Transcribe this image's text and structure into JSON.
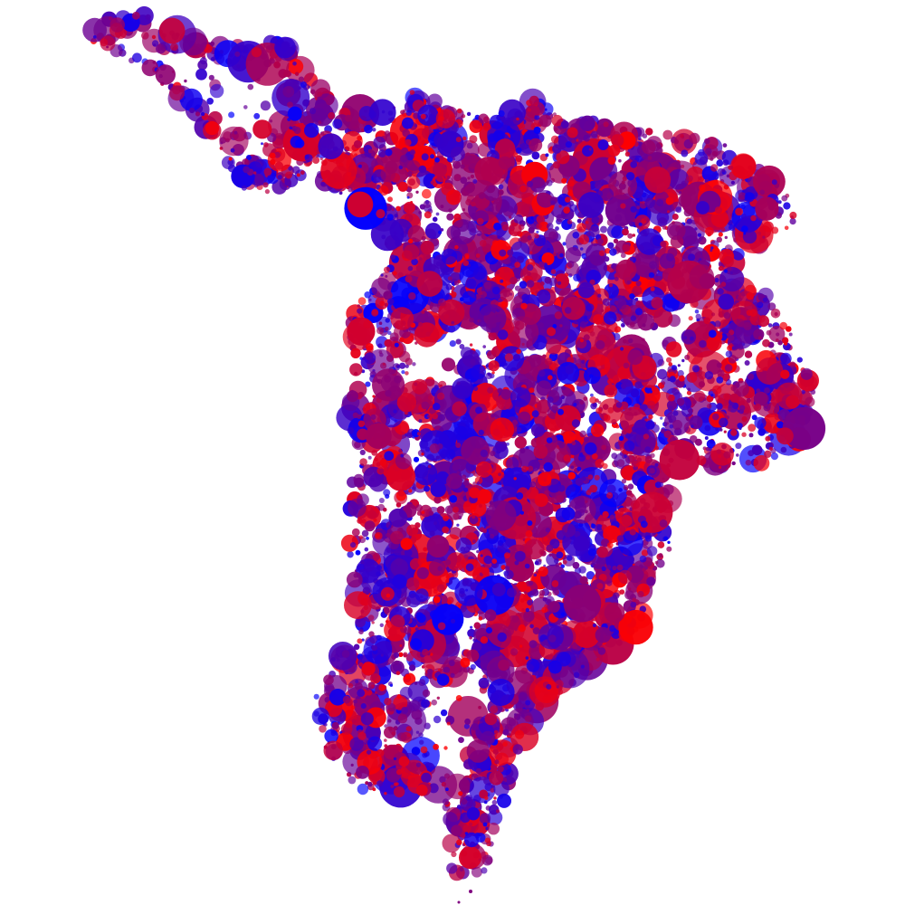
{
  "map": {
    "type": "bubble-map",
    "color_scale": {
      "low": "#0000ff",
      "mid": "#7f007f",
      "high": "#ff0000"
    },
    "background": "#ffffff"
  }
}
